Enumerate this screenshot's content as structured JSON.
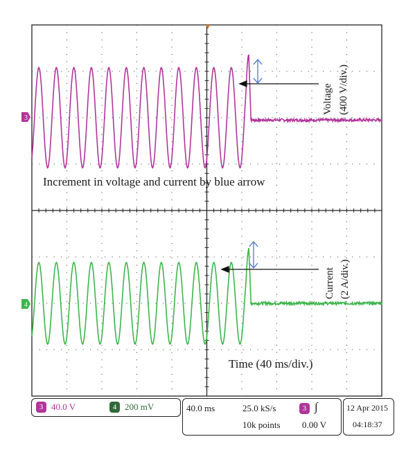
{
  "chart_data": {
    "type": "line",
    "title": "",
    "x_unit_per_div": "40 ms",
    "series": [
      {
        "name": "Voltage",
        "channel": "3",
        "color": "#b0359a",
        "scale": "400 V/div.",
        "frequency_hz": 50,
        "amplitude_div_before": 1.08,
        "amplitude_div_after": 0.02,
        "offset_div": -0.05,
        "step_time_ms": 248,
        "peak_div_at_step": 1.4
      },
      {
        "name": "Current",
        "channel": "4",
        "color": "#3cb54a",
        "scale": "2 A/div.",
        "frequency_hz": 50,
        "amplitude_div_before": 0.88,
        "amplitude_div_after": 0.02,
        "offset_div": 0.0,
        "step_time_ms": 248,
        "peak_div_at_step": 1.2
      }
    ],
    "x_range_ms": [
      0,
      400
    ],
    "y_range_div": [
      -4,
      4
    ],
    "grid": true
  },
  "annotations": {
    "voltage_label": "Voltage",
    "voltage_scale": "(400 V/div.)",
    "current_label": "Current",
    "current_scale": "(2 A/div.)",
    "increment_note": "Increment in voltage and current by blue arrow",
    "time_note": "Time (40 ms/div.)"
  },
  "markers": {
    "ch3": "3",
    "ch4": "4"
  },
  "status_bar": {
    "ch3_badge": "3",
    "ch3_scale": "40.0 V",
    "ch4_badge": "4",
    "ch4_scale": "200 mV",
    "timebase": "40.0 ms",
    "sample_rate": "25.0 kS/s",
    "record_length": "10k points",
    "trigger_badge": "3",
    "trigger_icon": "∫",
    "trigger_level": "0.00 V",
    "date": "12 Apr 2015",
    "time": "04:18:37"
  },
  "colors": {
    "voltage": "#b0359a",
    "current": "#3cb54a",
    "arrow_blue": "#5b7fd6",
    "grid": "#444444",
    "trigger": "#e07020"
  }
}
